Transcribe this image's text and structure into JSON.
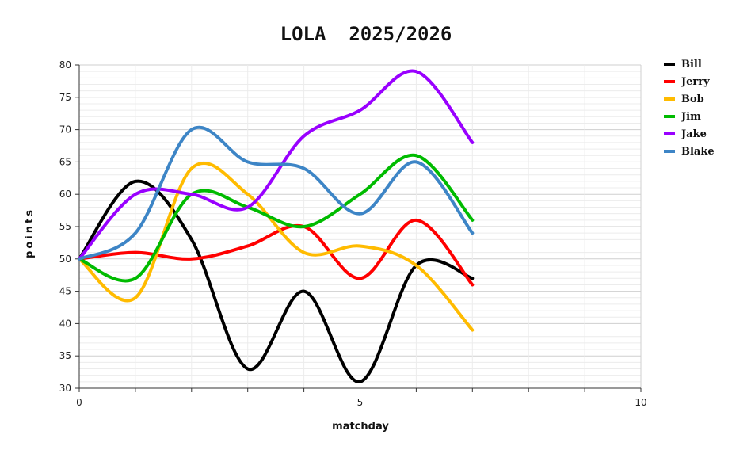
{
  "chart_data": {
    "type": "line",
    "title": "LOLA  2025/2026",
    "xlabel": "matchday",
    "ylabel": "points",
    "xlim": [
      0,
      10
    ],
    "ylim": [
      30,
      80
    ],
    "x_ticks": [
      0,
      5,
      10
    ],
    "y_ticks": [
      30,
      35,
      40,
      45,
      50,
      55,
      60,
      65,
      70,
      75,
      80
    ],
    "grid": true,
    "legend_position": "right",
    "x": [
      0,
      1,
      2,
      3,
      4,
      5,
      6,
      7
    ],
    "series": [
      {
        "name": "Bill",
        "color": "#000000",
        "values": [
          50,
          62,
          53,
          33,
          45,
          31,
          49,
          47
        ]
      },
      {
        "name": "Jerry",
        "color": "#ff0000",
        "values": [
          50,
          51,
          50,
          52,
          55,
          47,
          56,
          46
        ]
      },
      {
        "name": "Bob",
        "color": "#ffbb00",
        "values": [
          50,
          44,
          64,
          60,
          51,
          52,
          49,
          39
        ]
      },
      {
        "name": "Jim",
        "color": "#00bb00",
        "values": [
          50,
          47,
          60,
          58,
          55,
          60,
          66,
          56
        ]
      },
      {
        "name": "Jake",
        "color": "#9900ff",
        "values": [
          50,
          60,
          60,
          58,
          69,
          73,
          79,
          68
        ]
      },
      {
        "name": "Blake",
        "color": "#3d85c6",
        "values": [
          50,
          54,
          70,
          65,
          64,
          57,
          65,
          54
        ]
      }
    ]
  }
}
